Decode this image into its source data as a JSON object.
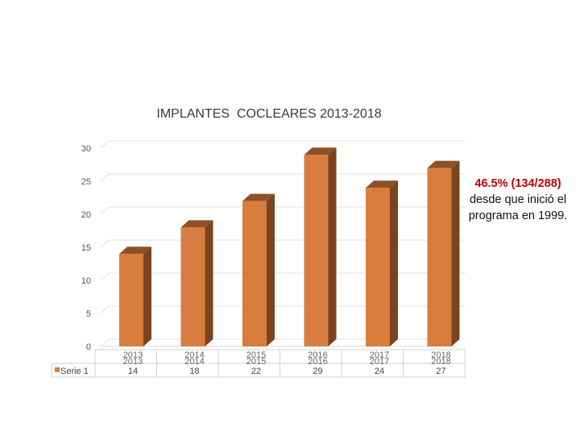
{
  "chart_data": {
    "type": "bar",
    "title": "IMPLANTES  COCLEARES 2013-2018",
    "categories": [
      "2013",
      "2014",
      "2015",
      "2016",
      "2017",
      "2018"
    ],
    "series": [
      {
        "name": "Serie 1",
        "values": [
          14,
          18,
          22,
          29,
          24,
          27
        ]
      }
    ],
    "ylim": [
      0,
      30
    ],
    "yticks": [
      "0",
      "5",
      "10",
      "15",
      "20",
      "25",
      "30"
    ],
    "grid": true,
    "bar_style": "3d",
    "legend": "bottom-left data table",
    "colors": {
      "bar_front": "#D87D3D",
      "bar_side": "#7A4421",
      "bar_top": "#8E5026",
      "highlight": "#C00000"
    }
  },
  "annotation": {
    "highlight": "46.5% (134/288)",
    "text": "desde que inició el programa en 1999."
  }
}
